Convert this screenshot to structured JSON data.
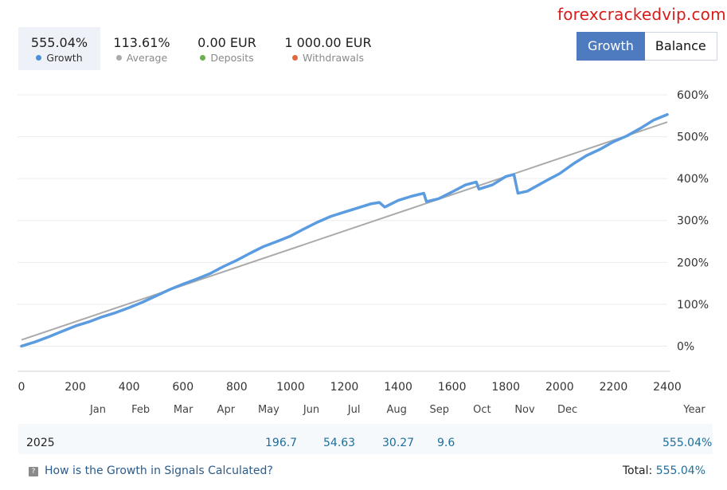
{
  "watermark": "forexcrackedvip.com",
  "stats": [
    {
      "value": "555.04%",
      "label": "Growth",
      "color": "#4a90d9"
    },
    {
      "value": "113.61%",
      "label": "Average",
      "color": "#aaaaaa"
    },
    {
      "value": "0.00 EUR",
      "label": "Deposits",
      "color": "#6ab04c"
    },
    {
      "value": "1 000.00 EUR",
      "label": "Withdrawals",
      "color": "#e0673a"
    }
  ],
  "toggle": {
    "growth": "Growth",
    "balance": "Balance"
  },
  "chart_data": {
    "type": "line",
    "x_range": [
      0,
      2400
    ],
    "y_range": [
      -60,
      640
    ],
    "x_ticks": [
      "0",
      "200",
      "400",
      "600",
      "800",
      "1000",
      "1200",
      "1400",
      "1600",
      "1800",
      "2000",
      "2200",
      "2400"
    ],
    "y_ticks": [
      "0%",
      "100%",
      "200%",
      "300%",
      "400%",
      "500%",
      "600%"
    ],
    "months": [
      "Jan",
      "Feb",
      "Mar",
      "Apr",
      "May",
      "Jun",
      "Jul",
      "Aug",
      "Sep",
      "Oct",
      "Nov",
      "Dec",
      "Year"
    ],
    "series": [
      {
        "name": "Growth",
        "color": "#5b9be0",
        "points": [
          [
            0,
            0
          ],
          [
            50,
            10
          ],
          [
            100,
            22
          ],
          [
            150,
            35
          ],
          [
            200,
            48
          ],
          [
            250,
            58
          ],
          [
            300,
            70
          ],
          [
            350,
            80
          ],
          [
            400,
            92
          ],
          [
            450,
            105
          ],
          [
            500,
            120
          ],
          [
            550,
            135
          ],
          [
            600,
            148
          ],
          [
            650,
            160
          ],
          [
            700,
            173
          ],
          [
            750,
            190
          ],
          [
            800,
            205
          ],
          [
            850,
            222
          ],
          [
            900,
            238
          ],
          [
            950,
            250
          ],
          [
            1000,
            263
          ],
          [
            1050,
            280
          ],
          [
            1100,
            296
          ],
          [
            1150,
            310
          ],
          [
            1200,
            320
          ],
          [
            1250,
            330
          ],
          [
            1300,
            340
          ],
          [
            1330,
            343
          ],
          [
            1350,
            332
          ],
          [
            1400,
            348
          ],
          [
            1450,
            358
          ],
          [
            1495,
            365
          ],
          [
            1505,
            345
          ],
          [
            1550,
            352
          ],
          [
            1600,
            368
          ],
          [
            1650,
            385
          ],
          [
            1690,
            392
          ],
          [
            1700,
            375
          ],
          [
            1750,
            385
          ],
          [
            1800,
            405
          ],
          [
            1830,
            410
          ],
          [
            1845,
            365
          ],
          [
            1880,
            370
          ],
          [
            1950,
            395
          ],
          [
            2000,
            412
          ],
          [
            2050,
            435
          ],
          [
            2100,
            455
          ],
          [
            2150,
            470
          ],
          [
            2200,
            488
          ],
          [
            2250,
            502
          ],
          [
            2300,
            520
          ],
          [
            2350,
            540
          ],
          [
            2400,
            553
          ]
        ]
      },
      {
        "name": "Average",
        "color": "#aaaaaa",
        "points": [
          [
            0,
            15
          ],
          [
            2400,
            535
          ]
        ]
      }
    ]
  },
  "year_row": {
    "year": "2025",
    "values": [
      "196.7",
      "54.63",
      "30.27",
      "9.6"
    ],
    "year_total": "555.04%"
  },
  "footer": {
    "link": "How is the Growth in Signals Calculated?",
    "total_label": "Total:",
    "total_value": "555.04%"
  }
}
